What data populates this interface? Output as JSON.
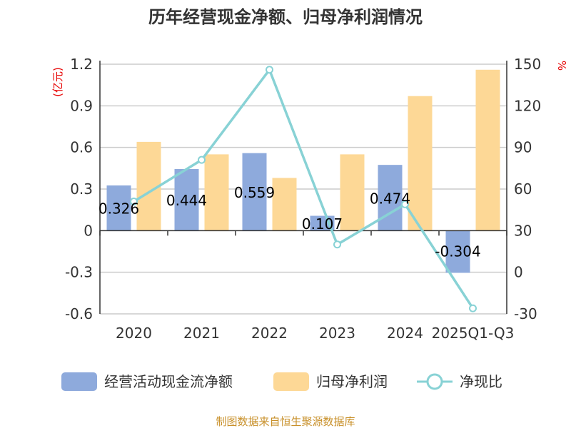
{
  "chart_data": {
    "type": "bar",
    "title": "历年经营现金净额、归母净利润情况",
    "categories": [
      "2020",
      "2021",
      "2022",
      "2023",
      "2024",
      "2025Q1-Q3"
    ],
    "y_left": {
      "unit": "(亿元)",
      "range": [
        -0.6,
        1.2
      ],
      "ticks": [
        "1.2",
        "0.9",
        "0.6",
        "0.3",
        "0",
        "-0.3",
        "-0.6"
      ]
    },
    "y_right": {
      "unit": "%",
      "range": [
        -30,
        150
      ],
      "ticks": [
        "150",
        "120",
        "90",
        "60",
        "30",
        "0",
        "-30"
      ]
    },
    "series": [
      {
        "name": "经营活动现金流净额",
        "type": "bar",
        "axis": "left",
        "color": "#8eaadc",
        "values": [
          0.326,
          0.444,
          0.559,
          0.107,
          0.474,
          -0.304
        ],
        "labels": [
          "0.326",
          "0.444",
          "0.559",
          "0.107",
          "0.474",
          "-0.304"
        ]
      },
      {
        "name": "归母净利润",
        "type": "bar",
        "axis": "left",
        "color": "#fdd896",
        "values": [
          0.64,
          0.55,
          0.38,
          0.55,
          0.97,
          1.16
        ]
      },
      {
        "name": "净现比",
        "type": "line",
        "axis": "right",
        "color": "#88d2d5",
        "values": [
          51,
          81,
          146,
          20,
          49,
          -26
        ]
      }
    ],
    "grid": true,
    "legend": "bottom"
  },
  "footer": {
    "source": "制图数据来自恒生聚源数据库"
  }
}
